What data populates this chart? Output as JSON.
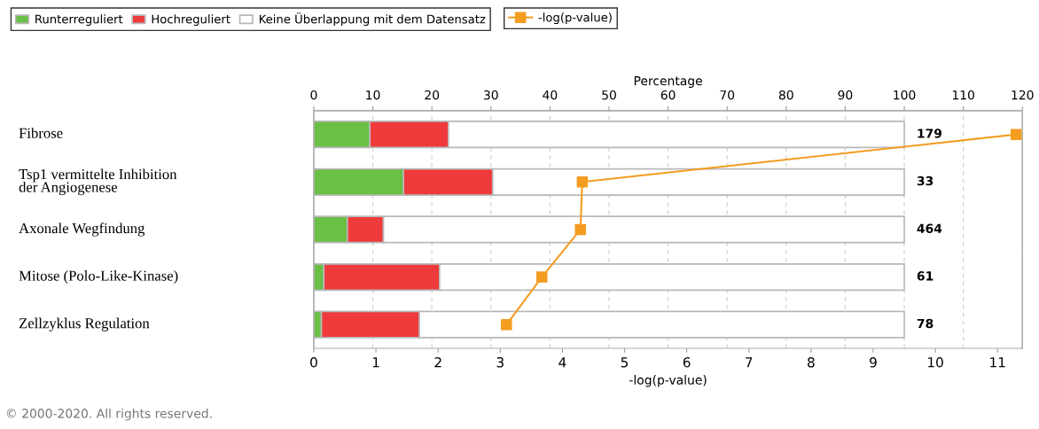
{
  "chart_data": {
    "type": "bar",
    "orientation": "horizontal",
    "stacked": true,
    "categories": [
      "Fibrose",
      "Tsp1 vermittelte Inhibition\nder Angiogenese",
      "Axonale Wegfindung",
      "Mitose (Polo-Like-Kinase)",
      "Zellzyklus Regulation"
    ],
    "series": [
      {
        "name": "Runterreguliert",
        "color": "#6abf45",
        "values": [
          9.5,
          15.2,
          5.7,
          1.7,
          1.3
        ]
      },
      {
        "name": "Hochreguliert",
        "color": "#ee3a3b",
        "values": [
          13.3,
          15.1,
          6.1,
          19.6,
          16.6
        ]
      },
      {
        "name": "Keine Überlappung mit dem Datensatz",
        "color": "#ffffff",
        "values": [
          77.2,
          69.7,
          88.2,
          78.7,
          82.1
        ]
      },
      {
        "name": "-log(p-value)",
        "color": "#f39c1f",
        "type": "line",
        "axis": "x2",
        "marker": "square",
        "values": [
          11.3,
          4.32,
          4.29,
          3.67,
          3.1
        ]
      }
    ],
    "xlabel": "Percentage",
    "xlim": [
      0,
      120
    ],
    "xticks": [
      0,
      10,
      20,
      30,
      40,
      50,
      60,
      70,
      80,
      90,
      100,
      110,
      120
    ],
    "x2label": "-log(p-value)",
    "x2lim": [
      0,
      11.4
    ],
    "x2ticks": [
      0,
      1,
      2,
      3,
      4,
      5,
      6,
      7,
      8,
      9,
      10,
      11
    ],
    "grid": "x",
    "legend": "top left",
    "annotations": [
      "179",
      "33",
      "464",
      "61",
      "78",
      "© 2000-2020. All rights reserved."
    ]
  }
}
